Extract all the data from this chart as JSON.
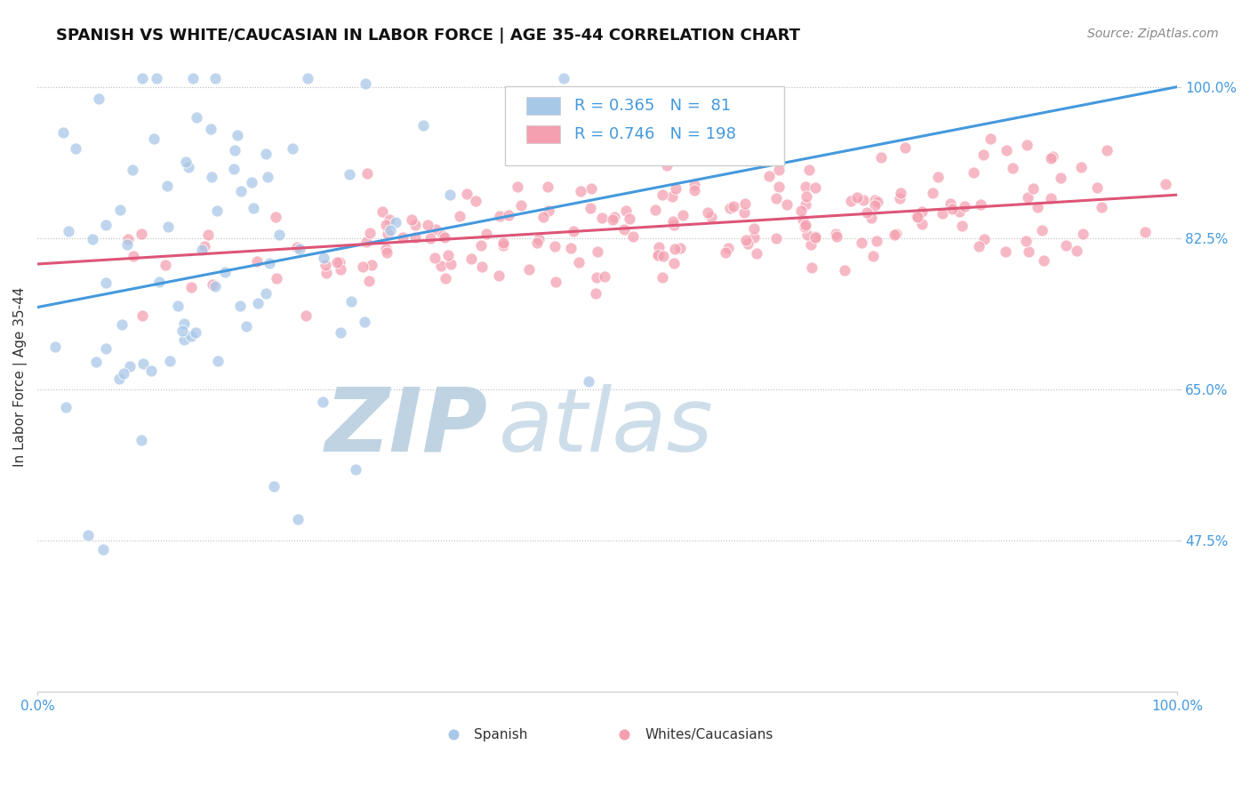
{
  "title": "SPANISH VS WHITE/CAUCASIAN IN LABOR FORCE | AGE 35-44 CORRELATION CHART",
  "source_text": "Source: ZipAtlas.com",
  "ylabel": "In Labor Force | Age 35-44",
  "R_spanish": 0.365,
  "N_spanish": 81,
  "R_white": 0.746,
  "N_white": 198,
  "spanish_color": "#a8c8e8",
  "white_color": "#f4a0b0",
  "trendline_spanish_color": "#4499dd",
  "trendline_white_color": "#dd5577",
  "watermark_color": "#d0dff0",
  "background_color": "#ffffff",
  "xlim": [
    0.0,
    1.0
  ],
  "ylim_low": 0.3,
  "ylim_high": 1.03,
  "yticks": [
    0.475,
    0.65,
    0.825,
    1.0
  ],
  "ytick_labels": [
    "47.5%",
    "65.0%",
    "82.5%",
    "100.0%"
  ],
  "xtick_labels": [
    "0.0%",
    "100.0%"
  ],
  "title_fontsize": 13,
  "axis_fontsize": 11,
  "legend_fontsize": 13,
  "source_fontsize": 10,
  "seed": 42,
  "sp_trend_x0": 0.0,
  "sp_trend_y0": 0.745,
  "sp_trend_x1": 1.0,
  "sp_trend_y1": 1.0,
  "wh_trend_x0": 0.0,
  "wh_trend_y0": 0.795,
  "wh_trend_x1": 1.0,
  "wh_trend_y1": 0.875
}
